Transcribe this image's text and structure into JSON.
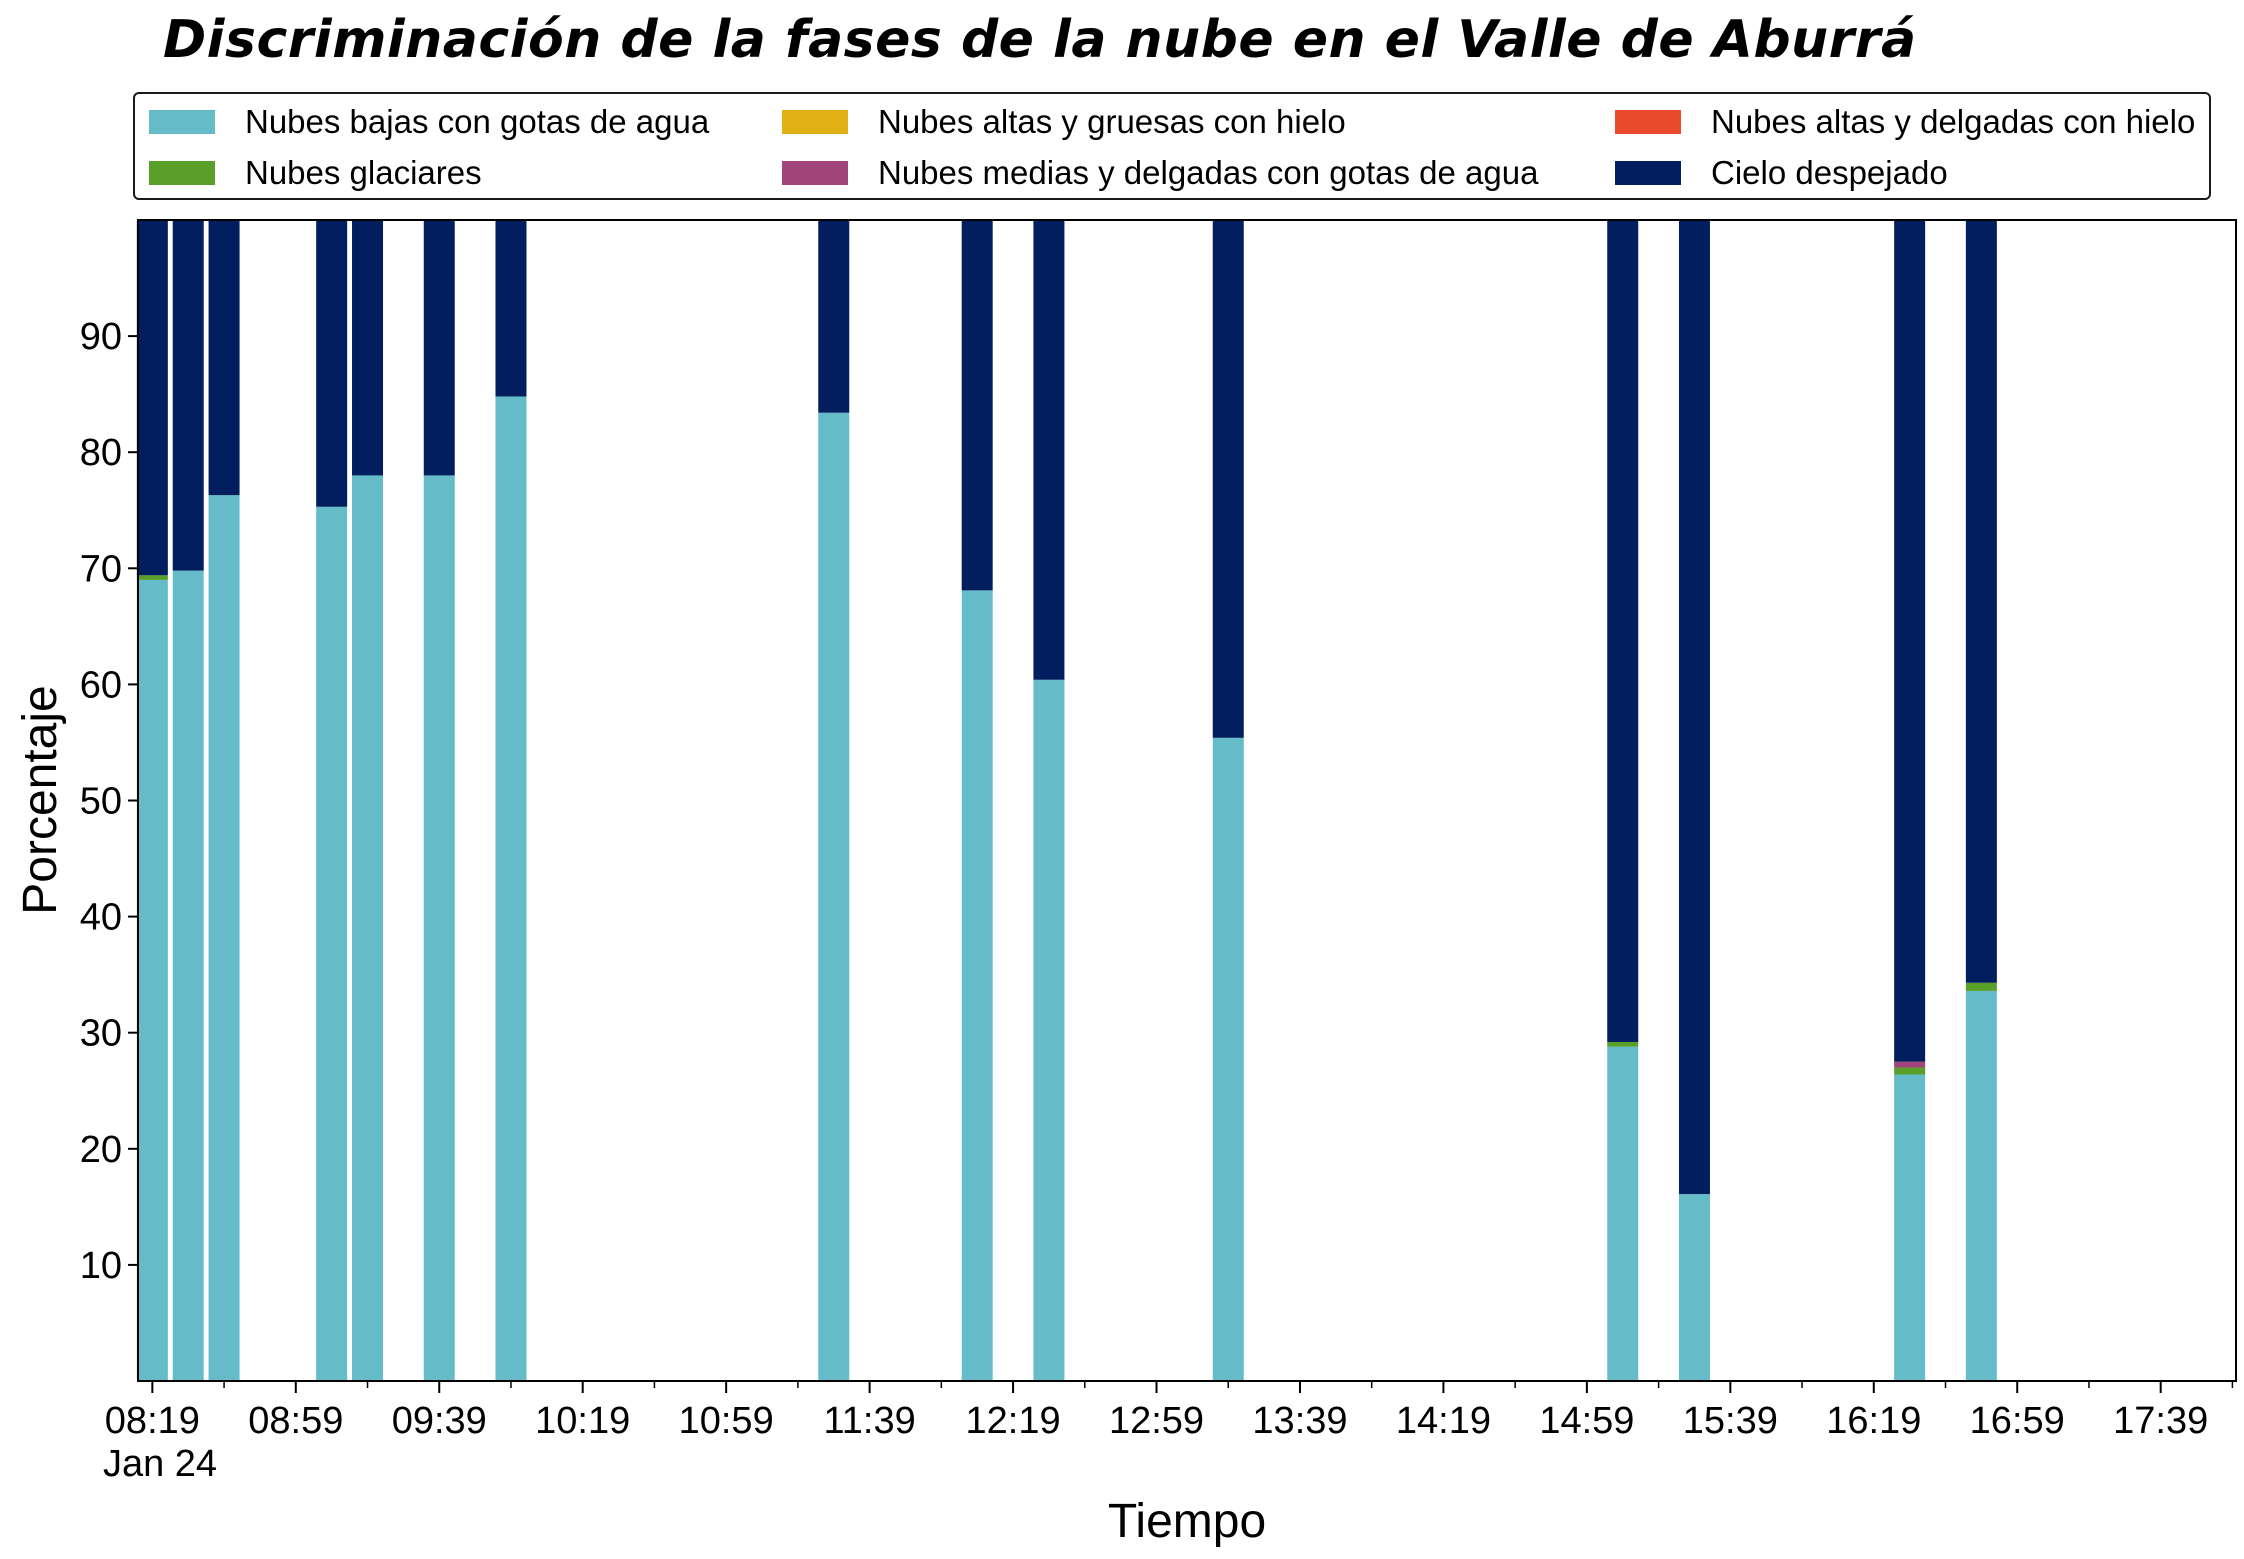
{
  "chart_data": {
    "type": "bar",
    "stacked": true,
    "title": "Discriminación de la fases de la nube en el Valle de Aburrá",
    "xlabel": "Tiempo",
    "ylabel": "Porcentaje",
    "ylim": [
      0,
      100
    ],
    "yticks": [
      10,
      20,
      30,
      40,
      50,
      60,
      70,
      80,
      90
    ],
    "xlim": [
      "08:15",
      "18:00"
    ],
    "x_date_label": "Jan 24",
    "xtick_labels": [
      "08:19",
      "08:59",
      "09:39",
      "10:19",
      "10:59",
      "11:39",
      "12:19",
      "12:59",
      "13:39",
      "14:19",
      "14:59",
      "15:39",
      "16:19",
      "16:59",
      "17:39"
    ],
    "x": [
      "08:19",
      "08:29",
      "08:39",
      "09:09",
      "09:19",
      "09:39",
      "09:59",
      "11:29",
      "12:09",
      "12:29",
      "13:19",
      "15:09",
      "15:29",
      "16:29",
      "16:49"
    ],
    "legend_position": "top",
    "grid": false,
    "series": [
      {
        "name": "Nubes bajas con gotas de agua",
        "color": "#65bcc8",
        "values": [
          69.0,
          69.8,
          76.3,
          75.3,
          78.0,
          78.0,
          84.8,
          83.4,
          68.1,
          60.4,
          55.4,
          28.8,
          16.1,
          26.4,
          33.6
        ]
      },
      {
        "name": "Nubes altas y gruesas con hielo",
        "color": "#e0b114",
        "values": [
          0,
          0,
          0,
          0,
          0,
          0,
          0,
          0,
          0,
          0,
          0,
          0,
          0,
          0,
          0
        ]
      },
      {
        "name": "Nubes altas y delgadas con hielo",
        "color": "#e94a2c",
        "values": [
          0,
          0,
          0,
          0,
          0,
          0,
          0,
          0,
          0,
          0,
          0,
          0,
          0,
          0,
          0
        ]
      },
      {
        "name": "Nubes glaciares",
        "color": "#5a9f2a",
        "values": [
          0.4,
          0,
          0,
          0,
          0,
          0,
          0,
          0,
          0,
          0,
          0,
          0.4,
          0,
          0.6,
          0.7
        ]
      },
      {
        "name": "Nubes medias y delgadas con gotas de agua",
        "color": "#a04479",
        "values": [
          0,
          0,
          0,
          0,
          0,
          0,
          0,
          0,
          0,
          0,
          0,
          0,
          0,
          0.5,
          0
        ]
      },
      {
        "name": "Cielo despejado",
        "color": "#021e5e",
        "values": [
          30.6,
          30.2,
          23.7,
          24.7,
          22.0,
          22.0,
          15.2,
          16.6,
          31.9,
          39.6,
          44.6,
          70.8,
          83.9,
          72.5,
          65.7
        ]
      }
    ]
  }
}
